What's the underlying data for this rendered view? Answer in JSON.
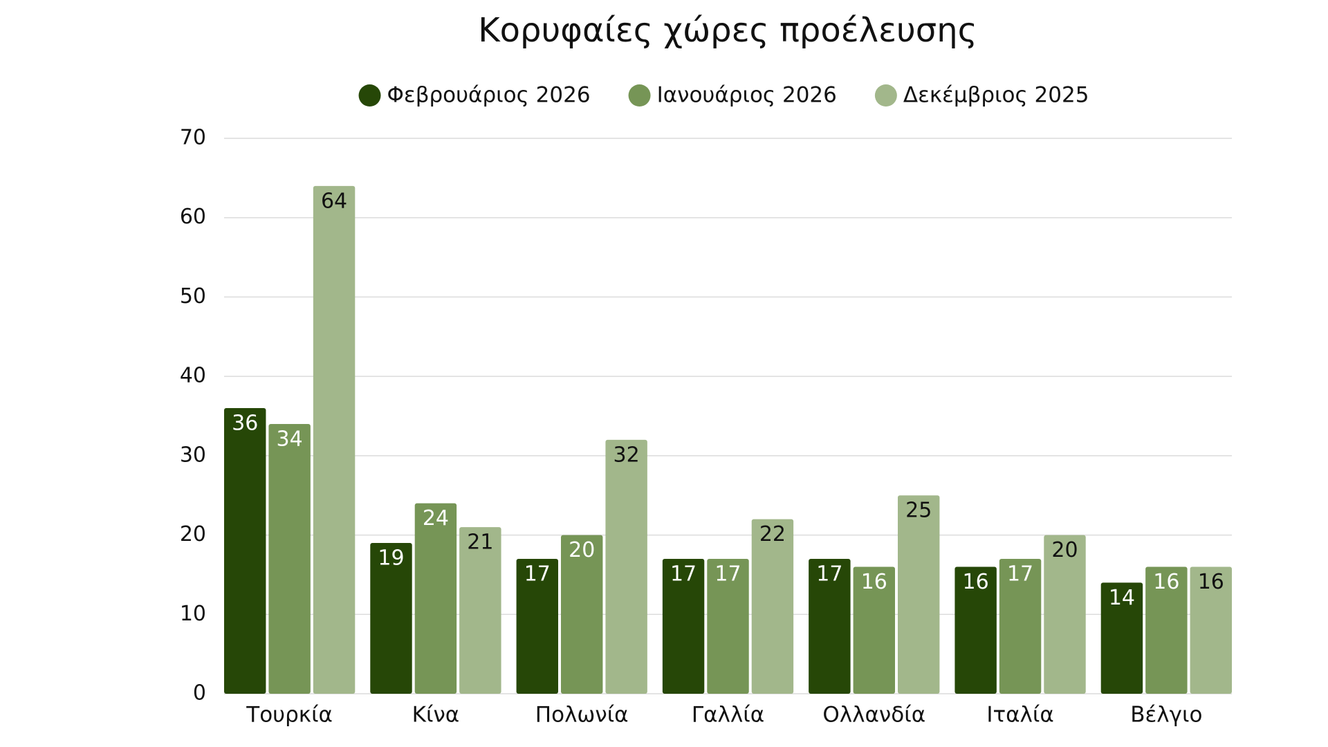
{
  "chart_data": {
    "type": "bar",
    "title": "Κορυφαίες χώρες προέλευσης",
    "categories": [
      "Τουρκία",
      "Κίνα",
      "Πολωνία",
      "Γαλλία",
      "Ολλανδία",
      "Ιταλία",
      "Βέλγιο"
    ],
    "series": [
      {
        "name": "Φεβρουάριος 2026",
        "color": "#264707",
        "values": [
          36,
          19,
          17,
          17,
          17,
          16,
          14
        ]
      },
      {
        "name": "Ιανουάριος 2026",
        "color": "#769556",
        "values": [
          34,
          24,
          20,
          17,
          16,
          17,
          16
        ]
      },
      {
        "name": "Δεκέμβριος 2025",
        "color": "#a2b78b",
        "values": [
          64,
          21,
          32,
          22,
          25,
          20,
          16
        ]
      }
    ],
    "ylim": [
      0,
      70
    ],
    "yticks": [
      0,
      10,
      20,
      30,
      40,
      50,
      60,
      70
    ],
    "grid": true,
    "legend": "top"
  }
}
